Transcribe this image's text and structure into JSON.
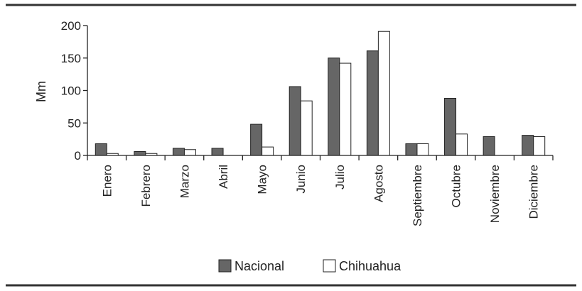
{
  "chart_data": {
    "type": "bar",
    "title": "",
    "xlabel": "",
    "ylabel": "Mm",
    "ylim": [
      0,
      200
    ],
    "yticks": [
      0,
      50,
      100,
      150,
      200
    ],
    "grid": false,
    "legend_position": "bottom-center",
    "categories": [
      "Enero",
      "Febrero",
      "Marzo",
      "Abril",
      "Mayo",
      "Junio",
      "Julio",
      "Agosto",
      "Septiembre",
      "Octubre",
      "Noviembre",
      "Diciembre"
    ],
    "series": [
      {
        "name": "Nacional",
        "color": "#666666",
        "values": [
          18,
          6,
          11,
          11,
          48,
          106,
          150,
          161,
          18,
          88,
          29,
          31
        ]
      },
      {
        "name": "Chihuahua",
        "color": "#ffffff",
        "values": [
          3,
          3,
          9,
          0,
          13,
          84,
          142,
          191,
          18,
          33,
          0,
          29
        ]
      }
    ]
  }
}
